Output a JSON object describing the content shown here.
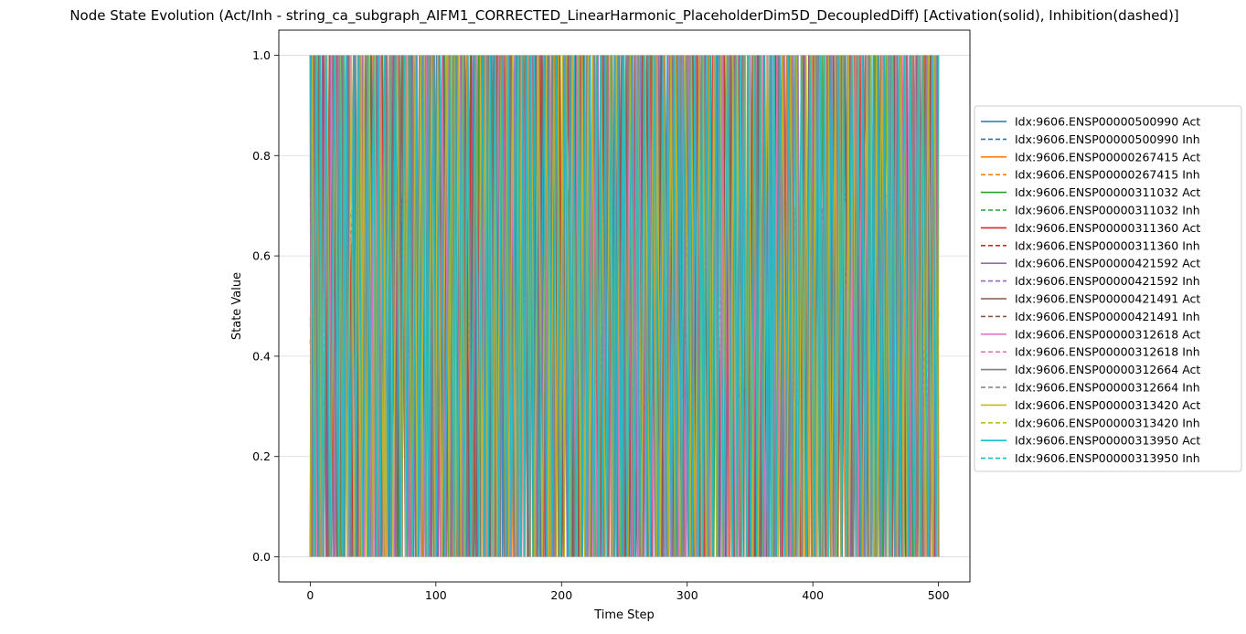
{
  "chart_data": {
    "type": "line",
    "title": "Node State Evolution (Act/Inh - string_ca_subgraph_AIFM1_CORRECTED_LinearHarmonic_PlaceholderDim5D_DecoupledDiff) [Activation(solid), Inhibition(dashed)]",
    "xlabel": "Time Step",
    "ylabel": "State Value",
    "xlim": [
      -25,
      525
    ],
    "ylim": [
      -0.05,
      1.05
    ],
    "xticks": [
      0,
      100,
      200,
      300,
      400,
      500
    ],
    "yticks": [
      0.0,
      0.2,
      0.4,
      0.6,
      0.8,
      1.0
    ],
    "xtick_labels": [
      "0",
      "100",
      "200",
      "300",
      "400",
      "500"
    ],
    "ytick_labels": [
      "0.0",
      "0.2",
      "0.4",
      "0.6",
      "0.8",
      "1.0"
    ],
    "grid": "y",
    "legend_placement": "right-outside",
    "series": [
      {
        "name": "Idx:9606.ENSP00000500990 Act",
        "color": "#1f77b4",
        "style": "solid"
      },
      {
        "name": "Idx:9606.ENSP00000500990 Inh",
        "color": "#1f77b4",
        "style": "dashed"
      },
      {
        "name": "Idx:9606.ENSP00000267415 Act",
        "color": "#ff7f0e",
        "style": "solid"
      },
      {
        "name": "Idx:9606.ENSP00000267415 Inh",
        "color": "#ff7f0e",
        "style": "dashed"
      },
      {
        "name": "Idx:9606.ENSP00000311032 Act",
        "color": "#2ca02c",
        "style": "solid"
      },
      {
        "name": "Idx:9606.ENSP00000311032 Inh",
        "color": "#2ca02c",
        "style": "dashed"
      },
      {
        "name": "Idx:9606.ENSP00000311360 Act",
        "color": "#d62728",
        "style": "solid"
      },
      {
        "name": "Idx:9606.ENSP00000311360 Inh",
        "color": "#d62728",
        "style": "dashed"
      },
      {
        "name": "Idx:9606.ENSP00000421592 Act",
        "color": "#9467bd",
        "style": "solid"
      },
      {
        "name": "Idx:9606.ENSP00000421592 Inh",
        "color": "#9467bd",
        "style": "dashed"
      },
      {
        "name": "Idx:9606.ENSP00000421491 Act",
        "color": "#8c564b",
        "style": "solid"
      },
      {
        "name": "Idx:9606.ENSP00000421491 Inh",
        "color": "#8c564b",
        "style": "dashed"
      },
      {
        "name": "Idx:9606.ENSP00000312618 Act",
        "color": "#e377c2",
        "style": "solid"
      },
      {
        "name": "Idx:9606.ENSP00000312618 Inh",
        "color": "#e377c2",
        "style": "dashed"
      },
      {
        "name": "Idx:9606.ENSP00000312664 Act",
        "color": "#7f7f7f",
        "style": "solid"
      },
      {
        "name": "Idx:9606.ENSP00000312664 Inh",
        "color": "#7f7f7f",
        "style": "dashed"
      },
      {
        "name": "Idx:9606.ENSP00000313420 Act",
        "color": "#bcbd22",
        "style": "solid"
      },
      {
        "name": "Idx:9606.ENSP00000313420 Inh",
        "color": "#bcbd22",
        "style": "dashed"
      },
      {
        "name": "Idx:9606.ENSP00000313950 Act",
        "color": "#17becf",
        "style": "solid"
      },
      {
        "name": "Idx:9606.ENSP00000313950 Inh",
        "color": "#17becf",
        "style": "dashed"
      }
    ],
    "x_range": [
      0,
      500
    ],
    "description_of_values": "All 20 series oscillate rapidly over time steps 0-500; solid Act series alternate between about 0.0 and 1.0, dashed Inh series oscillate mostly between about 0.3 and 0.72."
  }
}
